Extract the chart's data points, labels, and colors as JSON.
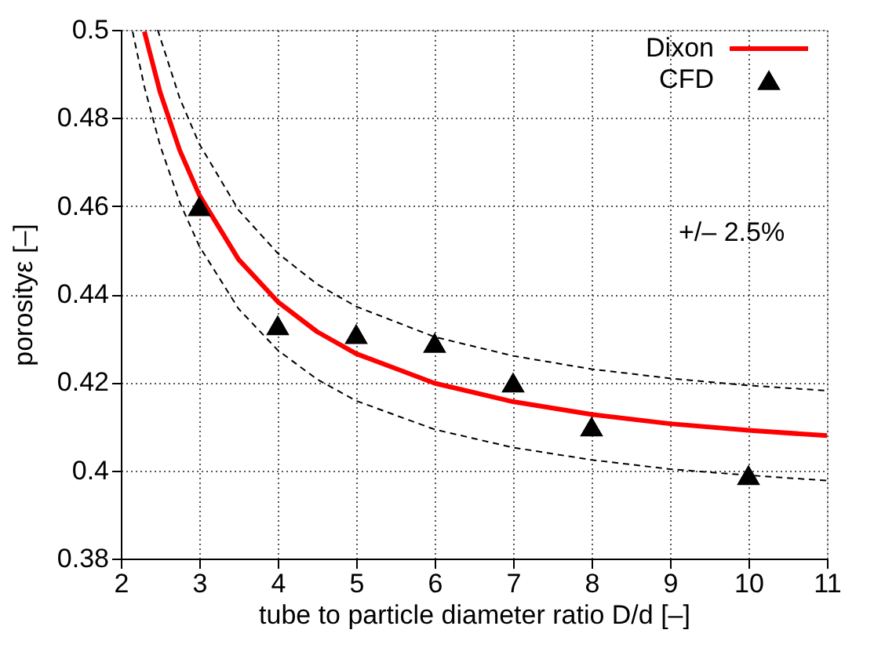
{
  "chart_data": {
    "type": "line",
    "xlabel": "tube to particle diameter ratio D/d [–]",
    "ylabel": "porosityε [–]",
    "xlim": [
      2,
      11
    ],
    "xticks": [
      2,
      3,
      4,
      5,
      6,
      7,
      8,
      9,
      10,
      11
    ],
    "ylim": [
      0.38,
      0.5
    ],
    "yticks": [
      0.38,
      0.4,
      0.42,
      0.44,
      0.46,
      0.48,
      0.5
    ],
    "grid": true,
    "legend": "top right",
    "annotations": [
      "+/– 2.5%"
    ],
    "series": [
      {
        "name": "Dixon",
        "color": "#ff0000",
        "line_style": "solid",
        "marker": "none",
        "x": [
          2.3,
          2.5,
          2.75,
          3,
          3.5,
          4,
          4.5,
          5,
          6,
          7,
          8,
          9,
          10,
          11
        ],
        "values": [
          0.4996,
          0.4859,
          0.4727,
          0.4625,
          0.4479,
          0.4383,
          0.4315,
          0.4265,
          0.4198,
          0.4156,
          0.4127,
          0.4106,
          0.4091,
          0.4079
        ]
      },
      {
        "color": "#000000",
        "line_style": "dashed",
        "marker": "none",
        "x": [
          2.47,
          2.75,
          3,
          3.5,
          4,
          4.5,
          5,
          6,
          7,
          8,
          9,
          10,
          11
        ],
        "values": [
          0.5,
          0.4845,
          0.4741,
          0.4591,
          0.4493,
          0.4423,
          0.4372,
          0.4303,
          0.426,
          0.423,
          0.4209,
          0.4193,
          0.4181
        ]
      },
      {
        "color": "#000000",
        "line_style": "dashed",
        "marker": "none",
        "x": [
          2.15,
          2.3,
          2.5,
          2.75,
          3,
          3.5,
          4,
          4.5,
          5,
          6,
          7,
          8,
          9,
          10,
          11
        ],
        "values": [
          0.4996,
          0.4871,
          0.4738,
          0.4609,
          0.4509,
          0.4367,
          0.4273,
          0.4207,
          0.4158,
          0.4093,
          0.4052,
          0.4024,
          0.4003,
          0.3989,
          0.3977
        ]
      },
      {
        "name": "CFD",
        "type": "scatter",
        "color": "#000000",
        "marker": "triangle",
        "x": [
          3,
          4,
          5,
          6,
          7,
          8,
          10
        ],
        "values": [
          0.46,
          0.433,
          0.431,
          0.429,
          0.42,
          0.41,
          0.399
        ]
      }
    ]
  }
}
